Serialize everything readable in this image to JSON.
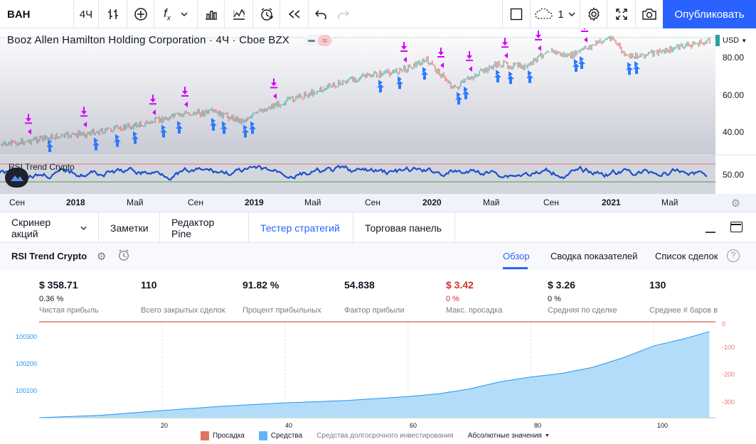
{
  "toolbar": {
    "symbol": "BAH",
    "interval": "4Ч",
    "layout_count": "1",
    "publish_label": "Опубликовать"
  },
  "chart": {
    "legend": "Booz Allen Hamilton Holding Corporation · 4Ч · Cboe BZX",
    "currency": "USD",
    "price_labels": [
      "80.00",
      "60.00",
      "40.00"
    ],
    "rsi_legend": "RSI Trend Crypto",
    "rsi_label": "50.00",
    "time_labels": [
      {
        "text": "Сен",
        "year": false
      },
      {
        "text": "2018",
        "year": true
      },
      {
        "text": "Май",
        "year": false
      },
      {
        "text": "Сен",
        "year": false
      },
      {
        "text": "2019",
        "year": true
      },
      {
        "text": "Май",
        "year": false
      },
      {
        "text": "Сен",
        "year": false
      },
      {
        "text": "2020",
        "year": true
      },
      {
        "text": "Май",
        "year": false
      },
      {
        "text": "Сен",
        "year": false
      },
      {
        "text": "2021",
        "year": true
      },
      {
        "text": "Май",
        "year": false
      }
    ],
    "colors": {
      "up": "#26a69a",
      "down": "#ef5350",
      "rsi": "#1e50c8",
      "buy": "#2979ff",
      "sell": "#d500f9"
    }
  },
  "panel_tabs": [
    {
      "label": "Скринер акций",
      "active": false
    },
    {
      "label": "Заметки",
      "active": false
    },
    {
      "label": "Редактор Pine",
      "active": false
    },
    {
      "label": "Тестер стратегий",
      "active": true
    },
    {
      "label": "Торговая панель",
      "active": false
    }
  ],
  "strategy": {
    "name": "RSI Trend Crypto",
    "tabs": {
      "overview": "Обзор",
      "summary": "Сводка показателей",
      "trades": "Список сделок"
    },
    "help": "?"
  },
  "stats": [
    {
      "value": "$ 358.71",
      "sub": "0.36 %",
      "label": "Чистая прибыль",
      "red": false
    },
    {
      "value": "110",
      "sub": "",
      "label": "Всего закрытых сделок",
      "red": false
    },
    {
      "value": "91.82 %",
      "sub": "",
      "label": "Процент прибыльных",
      "red": false
    },
    {
      "value": "54.838",
      "sub": "",
      "label": "Фактор прибыли",
      "red": false
    },
    {
      "value": "$ 3.42",
      "sub": "0 %",
      "label": "Макс. просадка",
      "red": true
    },
    {
      "value": "$ 3.26",
      "sub": "0 %",
      "label": "Средняя по сделке",
      "red": false
    },
    {
      "value": "130",
      "sub": "",
      "label": "Среднее # баров в",
      "red": false
    }
  ],
  "equity_chart": {
    "type": "area",
    "left_ticks": [
      "100300",
      "100200",
      "100100"
    ],
    "right_ticks": [
      "0",
      "-100",
      "-200",
      "-300"
    ],
    "x_ticks": [
      "20",
      "40",
      "60",
      "80",
      "100"
    ],
    "x_range": [
      0,
      110
    ],
    "y_range": [
      100000,
      100400
    ],
    "equity_points": [
      [
        0,
        100000
      ],
      [
        10,
        100010
      ],
      [
        20,
        100030
      ],
      [
        30,
        100048
      ],
      [
        40,
        100062
      ],
      [
        50,
        100072
      ],
      [
        60,
        100088
      ],
      [
        65,
        100100
      ],
      [
        70,
        100120
      ],
      [
        75,
        100150
      ],
      [
        80,
        100170
      ],
      [
        85,
        100185
      ],
      [
        90,
        100210
      ],
      [
        95,
        100250
      ],
      [
        100,
        100300
      ],
      [
        105,
        100330
      ],
      [
        109,
        100359
      ]
    ],
    "legend": {
      "drawdown": "Просадка",
      "equity": "Средства",
      "buy_hold": "Средства долгосрочного инвестирования",
      "mode": "Абсолютные значения"
    },
    "colors": {
      "equity": "#2196f3",
      "drawdown": "#ef5350"
    }
  }
}
